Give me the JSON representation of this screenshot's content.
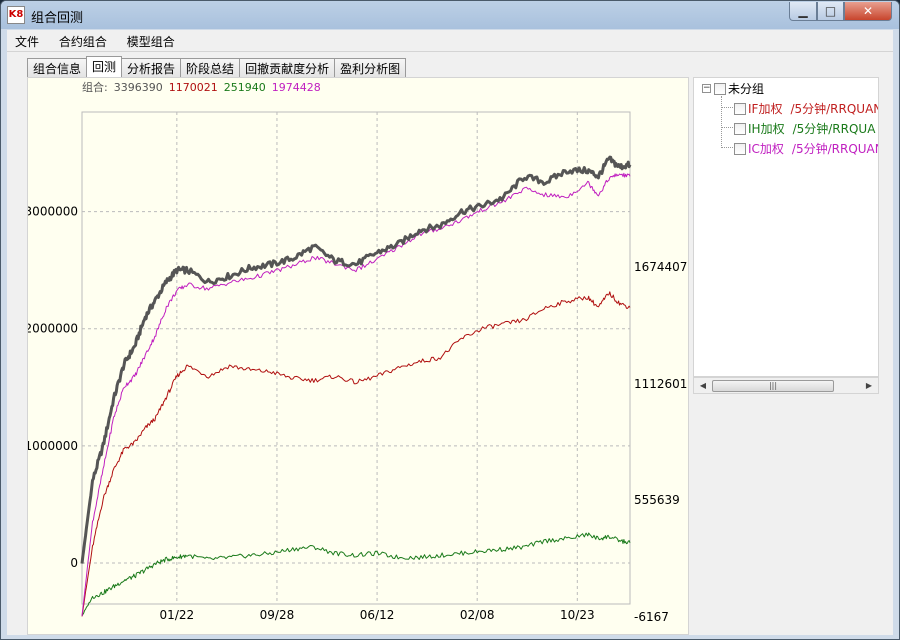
{
  "window": {
    "title": "组合回测",
    "app_icon": "K8",
    "minimize_icon": "minimize-icon",
    "maximize_icon": "maximize-icon",
    "close_icon": "close-icon"
  },
  "menu": [
    "文件",
    "合约组合",
    "模型组合"
  ],
  "tabs": [
    {
      "label": "组合信息",
      "active": false
    },
    {
      "label": "回测",
      "active": true
    },
    {
      "label": "分析报告",
      "active": false
    },
    {
      "label": "阶段总结",
      "active": false
    },
    {
      "label": "回撤贡献度分析",
      "active": false
    },
    {
      "label": "盈利分析图",
      "active": false
    }
  ],
  "legend": {
    "prefix": "组合:",
    "values": [
      {
        "text": "3396390",
        "color": "#555555"
      },
      {
        "text": "1170021",
        "color": "#b01010"
      },
      {
        "text": "251940",
        "color": "#1a7a1a"
      },
      {
        "text": "1974428",
        "color": "#c020c0"
      }
    ]
  },
  "tree": {
    "root": {
      "label": "未分组",
      "expander": "−"
    },
    "children": [
      {
        "name": "IF加权",
        "detail": "/5分钟/RRQUAN",
        "color": "#c02020"
      },
      {
        "name": "IH加权",
        "detail": "/5分钟/RRQUA",
        "color": "#1a7a1a"
      },
      {
        "name": "IC加权",
        "detail": "/5分钟/RRQUAN",
        "color": "#c020c0"
      }
    ]
  },
  "scrollbar": {
    "left_arrow": "◀",
    "right_arrow": "▶",
    "grip": "|||"
  },
  "chart_data": {
    "type": "line",
    "x_tick_labels": [
      "01/22",
      "09/28",
      "06/12",
      "02/08",
      "10/23"
    ],
    "y_left_ticks": [
      {
        "label": "3000000",
        "value": 3000000
      },
      {
        "label": "2000000",
        "value": 2000000
      },
      {
        "label": "1000000",
        "value": 1000000
      },
      {
        "label": "0",
        "value": 0
      }
    ],
    "y_right_ticks": [
      {
        "label": "1674407",
        "value": 1674407
      },
      {
        "label": "1112601",
        "value": 1112601
      },
      {
        "label": "555639",
        "value": 555639
      },
      {
        "label": "-6167",
        "value": -6167
      }
    ],
    "ylim_left": [
      -350000,
      3850000
    ],
    "grid": true,
    "series": [
      {
        "name": "组合",
        "axis": "left",
        "color": "#555555",
        "width": 3,
        "points": [
          [
            0,
            0
          ],
          [
            1,
            700000
          ],
          [
            2,
            1000000
          ],
          [
            3,
            1400000
          ],
          [
            4,
            1700000
          ],
          [
            5,
            1850000
          ],
          [
            6,
            2100000
          ],
          [
            7,
            2250000
          ],
          [
            8,
            2400000
          ],
          [
            9,
            2500000
          ],
          [
            10,
            2500000
          ],
          [
            12,
            2400000
          ],
          [
            14,
            2450000
          ],
          [
            16,
            2520000
          ],
          [
            18,
            2550000
          ],
          [
            20,
            2600000
          ],
          [
            22,
            2700000
          ],
          [
            24,
            2580000
          ],
          [
            26,
            2550000
          ],
          [
            28,
            2650000
          ],
          [
            30,
            2720000
          ],
          [
            32,
            2840000
          ],
          [
            34,
            2880000
          ],
          [
            36,
            3000000
          ],
          [
            38,
            3050000
          ],
          [
            40,
            3120000
          ],
          [
            42,
            3300000
          ],
          [
            44,
            3250000
          ],
          [
            46,
            3350000
          ],
          [
            48,
            3350000
          ],
          [
            49,
            3300000
          ],
          [
            50,
            3450000
          ],
          [
            51,
            3380000
          ],
          [
            52,
            3400000
          ]
        ]
      },
      {
        "name": "IF",
        "axis": "right",
        "color": "#b01010",
        "width": 1,
        "points": [
          [
            0,
            0
          ],
          [
            1,
            330000
          ],
          [
            2,
            560000
          ],
          [
            3,
            700000
          ],
          [
            4,
            800000
          ],
          [
            5,
            830000
          ],
          [
            6,
            900000
          ],
          [
            7,
            950000
          ],
          [
            8,
            1050000
          ],
          [
            9,
            1150000
          ],
          [
            10,
            1200000
          ],
          [
            12,
            1150000
          ],
          [
            14,
            1200000
          ],
          [
            16,
            1180000
          ],
          [
            18,
            1170000
          ],
          [
            20,
            1140000
          ],
          [
            22,
            1130000
          ],
          [
            24,
            1150000
          ],
          [
            26,
            1120000
          ],
          [
            28,
            1150000
          ],
          [
            30,
            1190000
          ],
          [
            32,
            1220000
          ],
          [
            34,
            1240000
          ],
          [
            36,
            1330000
          ],
          [
            38,
            1380000
          ],
          [
            40,
            1400000
          ],
          [
            42,
            1420000
          ],
          [
            44,
            1480000
          ],
          [
            46,
            1510000
          ],
          [
            48,
            1530000
          ],
          [
            49,
            1480000
          ],
          [
            50,
            1550000
          ],
          [
            51,
            1500000
          ],
          [
            52,
            1480000
          ]
        ]
      },
      {
        "name": "IH",
        "axis": "right",
        "color": "#1a7a1a",
        "width": 1,
        "points": [
          [
            0,
            0
          ],
          [
            1,
            90000
          ],
          [
            2,
            110000
          ],
          [
            3,
            140000
          ],
          [
            4,
            170000
          ],
          [
            5,
            190000
          ],
          [
            6,
            220000
          ],
          [
            7,
            250000
          ],
          [
            8,
            270000
          ],
          [
            9,
            280000
          ],
          [
            10,
            290000
          ],
          [
            12,
            270000
          ],
          [
            14,
            280000
          ],
          [
            16,
            290000
          ],
          [
            18,
            300000
          ],
          [
            20,
            320000
          ],
          [
            22,
            330000
          ],
          [
            24,
            300000
          ],
          [
            26,
            290000
          ],
          [
            28,
            300000
          ],
          [
            30,
            280000
          ],
          [
            32,
            280000
          ],
          [
            34,
            290000
          ],
          [
            36,
            300000
          ],
          [
            38,
            310000
          ],
          [
            40,
            320000
          ],
          [
            42,
            330000
          ],
          [
            44,
            360000
          ],
          [
            46,
            370000
          ],
          [
            48,
            390000
          ],
          [
            49,
            370000
          ],
          [
            50,
            380000
          ],
          [
            51,
            360000
          ],
          [
            52,
            350000
          ]
        ]
      },
      {
        "name": "IC",
        "axis": "right",
        "color": "#c020c0",
        "width": 1,
        "points": [
          [
            0,
            0
          ],
          [
            1,
            450000
          ],
          [
            2,
            700000
          ],
          [
            3,
            950000
          ],
          [
            4,
            1100000
          ],
          [
            5,
            1150000
          ],
          [
            6,
            1250000
          ],
          [
            7,
            1350000
          ],
          [
            8,
            1480000
          ],
          [
            9,
            1560000
          ],
          [
            10,
            1590000
          ],
          [
            12,
            1570000
          ],
          [
            14,
            1600000
          ],
          [
            16,
            1620000
          ],
          [
            18,
            1650000
          ],
          [
            20,
            1680000
          ],
          [
            22,
            1720000
          ],
          [
            24,
            1690000
          ],
          [
            26,
            1660000
          ],
          [
            28,
            1710000
          ],
          [
            30,
            1770000
          ],
          [
            32,
            1830000
          ],
          [
            34,
            1860000
          ],
          [
            36,
            1900000
          ],
          [
            38,
            1950000
          ],
          [
            40,
            1990000
          ],
          [
            42,
            2050000
          ],
          [
            44,
            2020000
          ],
          [
            46,
            2010000
          ],
          [
            48,
            2080000
          ],
          [
            49,
            2020000
          ],
          [
            50,
            2100000
          ],
          [
            51,
            2120000
          ],
          [
            52,
            2110000
          ]
        ]
      }
    ],
    "xlim": [
      0,
      52
    ],
    "x_tick_positions": [
      9,
      18.5,
      28,
      37.5,
      47
    ]
  }
}
